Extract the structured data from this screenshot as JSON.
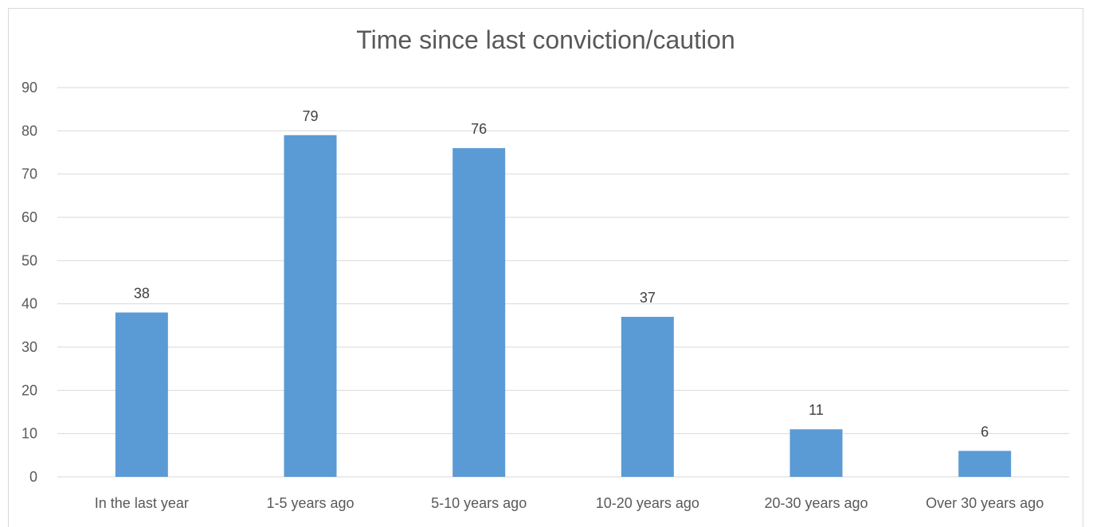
{
  "chart_data": {
    "type": "bar",
    "title": "Time since last conviction/caution",
    "categories": [
      "In the last year",
      "1-5 years ago",
      "5-10 years ago",
      "10-20 years ago",
      "20-30 years ago",
      "Over 30 years ago"
    ],
    "values": [
      38,
      79,
      76,
      37,
      11,
      6
    ],
    "data_labels": [
      "38",
      "79",
      "76",
      "37",
      "11",
      "6"
    ],
    "ylim": [
      0,
      90
    ],
    "yticks": [
      "0",
      "10",
      "20",
      "30",
      "40",
      "50",
      "60",
      "70",
      "80",
      "90"
    ],
    "xlabel": "",
    "ylabel": "",
    "grid": true,
    "legend": "none",
    "bar_color": "#5b9bd5",
    "grid_color": "#d9d9d9"
  }
}
